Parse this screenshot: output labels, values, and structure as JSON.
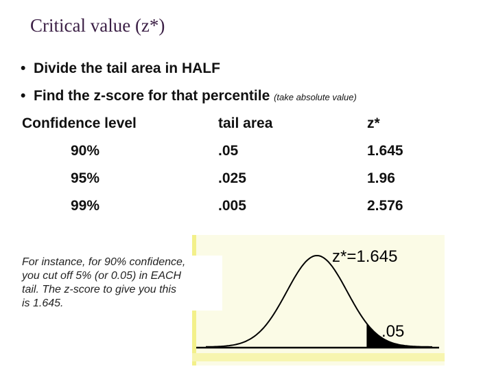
{
  "title": "Critical value (z*)",
  "bullets": [
    {
      "text": "Divide the tail area in HALF"
    },
    {
      "text": "Find the z-score for that percentile",
      "note": "(take absolute value)"
    }
  ],
  "table": {
    "header": [
      "Confidence level",
      "tail area",
      "z*"
    ],
    "rows": [
      [
        "90%",
        ".05",
        "1.645"
      ],
      [
        "95%",
        ".025",
        "1.96"
      ],
      [
        "99%",
        ".005",
        "2.576"
      ]
    ]
  },
  "example": {
    "lines": [
      "For instance, for 90% confidence,",
      "you cut off 5% (or 0.05) in EACH",
      "tail.  The z-score to give you this",
      "is 1.645."
    ]
  },
  "figure": {
    "label_z": "z*=1.645",
    "label_tail": ".05"
  }
}
